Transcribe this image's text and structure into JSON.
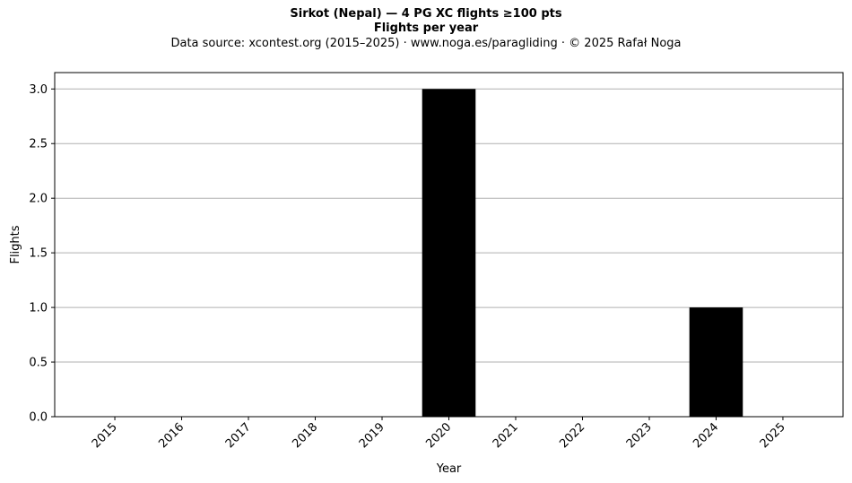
{
  "chart_data": {
    "type": "bar",
    "title": "Sirkot (Nepal)  —  4 PG XC flights ≥100 pts",
    "subtitle": "Flights per year",
    "source": "Data source: xcontest.org (2015–2025)  ·  www.noga.es/paragliding  ·  © 2025 Rafał Noga",
    "xlabel": "Year",
    "ylabel": "Flights",
    "categories": [
      "2015",
      "2016",
      "2017",
      "2018",
      "2019",
      "2020",
      "2021",
      "2022",
      "2023",
      "2024",
      "2025"
    ],
    "values": [
      0,
      0,
      0,
      0,
      0,
      3,
      0,
      0,
      0,
      1,
      0
    ],
    "ylim": [
      0,
      3.15
    ],
    "yticks": [
      "0.0",
      "0.5",
      "1.0",
      "1.5",
      "2.0",
      "2.5",
      "3.0"
    ],
    "bar_color": "#000000",
    "grid": "horizontal",
    "legend": "none"
  }
}
